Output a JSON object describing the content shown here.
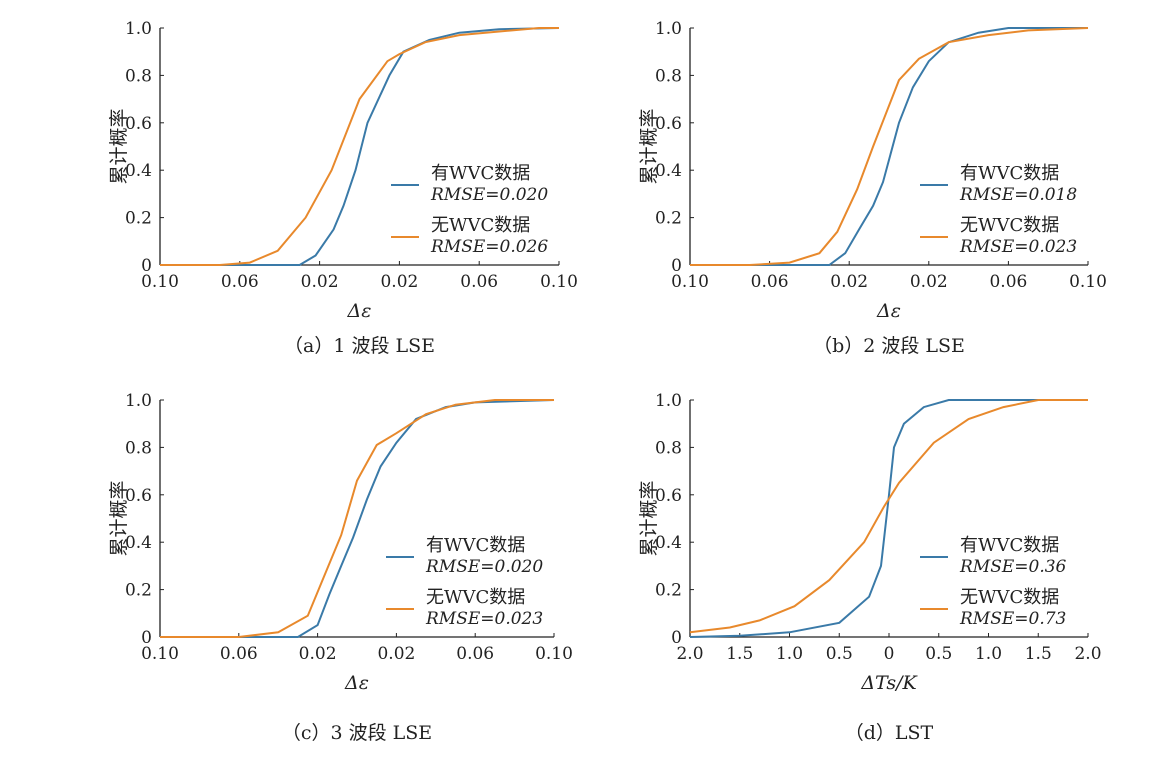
{
  "colors": {
    "with": "#3a7aa8",
    "without": "#e8892c"
  },
  "chart_data": [
    {
      "type": "line",
      "caption": "（a）1 波段 LSE",
      "xlabel": "Δε",
      "ylabel": "累计概率",
      "xlim": [
        -0.1,
        0.1
      ],
      "ylim": [
        0,
        1
      ],
      "xticks": [
        -0.1,
        -0.06,
        -0.02,
        0.02,
        0.06,
        0.1
      ],
      "xtick_labels": [
        "0.10",
        "0.06",
        "0.02",
        "0.02",
        "0.06",
        "0.10"
      ],
      "yticks": [
        0,
        0.2,
        0.4,
        0.6,
        0.8,
        1.0
      ],
      "ytick_labels": [
        "0",
        "0.2",
        "0.4",
        "0.6",
        "0.8",
        "1.0"
      ],
      "legend": "bottom-right",
      "series": [
        {
          "name": "有WVC数据",
          "rmse": "RMSE=0.020",
          "x": [
            -0.1,
            -0.03,
            -0.022,
            -0.013,
            -0.008,
            -0.002,
            0.004,
            0.015,
            0.022,
            0.035,
            0.05,
            0.07,
            0.1
          ],
          "y": [
            0,
            0,
            0.04,
            0.15,
            0.25,
            0.4,
            0.6,
            0.8,
            0.9,
            0.95,
            0.98,
            0.995,
            1
          ]
        },
        {
          "name": "无WVC数据",
          "rmse": "RMSE=0.026",
          "x": [
            -0.1,
            -0.07,
            -0.055,
            -0.041,
            -0.027,
            -0.014,
            0,
            0.014,
            0.02,
            0.033,
            0.05,
            0.09,
            0.1
          ],
          "y": [
            0,
            0,
            0.01,
            0.06,
            0.2,
            0.4,
            0.7,
            0.86,
            0.89,
            0.94,
            0.97,
            1,
            1
          ]
        }
      ]
    },
    {
      "type": "line",
      "caption": "（b）2 波段 LSE",
      "xlabel": "Δε",
      "ylabel": "累计概率",
      "xlim": [
        -0.1,
        0.1
      ],
      "ylim": [
        0,
        1
      ],
      "xticks": [
        -0.1,
        -0.06,
        -0.02,
        0.02,
        0.06,
        0.1
      ],
      "xtick_labels": [
        "0.10",
        "0.06",
        "0.02",
        "0.02",
        "0.06",
        "0.10"
      ],
      "yticks": [
        0,
        0.2,
        0.4,
        0.6,
        0.8,
        1.0
      ],
      "ytick_labels": [
        "0",
        "0.2",
        "0.4",
        "0.6",
        "0.8",
        "1.0"
      ],
      "legend": "bottom-right",
      "series": [
        {
          "name": "有WVC数据",
          "rmse": "RMSE=0.018",
          "x": [
            -0.1,
            -0.03,
            -0.022,
            -0.015,
            -0.008,
            -0.003,
            0.005,
            0.012,
            0.02,
            0.03,
            0.045,
            0.06,
            0.1
          ],
          "y": [
            0,
            0,
            0.05,
            0.15,
            0.25,
            0.35,
            0.6,
            0.75,
            0.86,
            0.94,
            0.98,
            1,
            1
          ]
        },
        {
          "name": "无WVC数据",
          "rmse": "RMSE=0.023",
          "x": [
            -0.1,
            -0.07,
            -0.05,
            -0.035,
            -0.026,
            -0.016,
            -0.008,
            0.005,
            0.015,
            0.03,
            0.05,
            0.07,
            0.1
          ],
          "y": [
            0,
            0,
            0.01,
            0.05,
            0.14,
            0.32,
            0.5,
            0.78,
            0.87,
            0.94,
            0.97,
            0.99,
            1
          ]
        }
      ]
    },
    {
      "type": "line",
      "caption": "（c）3 波段 LSE",
      "xlabel": "Δε",
      "ylabel": "累计概率",
      "xlim": [
        -0.1,
        0.1
      ],
      "ylim": [
        0,
        1
      ],
      "xticks": [
        -0.1,
        -0.06,
        -0.02,
        0.02,
        0.06,
        0.1
      ],
      "xtick_labels": [
        "0.10",
        "0.06",
        "0.02",
        "0.02",
        "0.06",
        "0.10"
      ],
      "yticks": [
        0,
        0.2,
        0.4,
        0.6,
        0.8,
        1.0
      ],
      "ytick_labels": [
        "0",
        "0.2",
        "0.4",
        "0.6",
        "0.8",
        "1.0"
      ],
      "legend": "bottom-right",
      "series": [
        {
          "name": "有WVC数据",
          "rmse": "RMSE=0.020",
          "x": [
            -0.1,
            -0.03,
            -0.02,
            -0.014,
            -0.008,
            -0.002,
            0.005,
            0.012,
            0.02,
            0.03,
            0.045,
            0.06,
            0.1
          ],
          "y": [
            0,
            0,
            0.05,
            0.18,
            0.3,
            0.42,
            0.58,
            0.72,
            0.82,
            0.92,
            0.97,
            0.99,
            1
          ]
        },
        {
          "name": "无WVC数据",
          "rmse": "RMSE=0.023",
          "x": [
            -0.1,
            -0.06,
            -0.04,
            -0.025,
            -0.017,
            -0.008,
            0,
            0.01,
            0.02,
            0.035,
            0.05,
            0.07,
            0.1
          ],
          "y": [
            0,
            0,
            0.02,
            0.09,
            0.25,
            0.43,
            0.66,
            0.81,
            0.86,
            0.94,
            0.98,
            1,
            1
          ]
        }
      ]
    },
    {
      "type": "line",
      "caption": "（d）LST",
      "xlabel": "ΔTs/K",
      "ylabel": "累计概率",
      "xlim": [
        -2,
        2
      ],
      "ylim": [
        0,
        1
      ],
      "xticks": [
        -2,
        -1.5,
        -1,
        -0.5,
        0,
        0.5,
        1,
        1.5,
        2
      ],
      "xtick_labels": [
        "2.0",
        "1.5",
        "1.0",
        "0.5",
        "0",
        "0.5",
        "1.0",
        "1.5",
        "2.0"
      ],
      "yticks": [
        0,
        0.2,
        0.4,
        0.6,
        0.8,
        1.0
      ],
      "ytick_labels": [
        "0",
        "0.2",
        "0.4",
        "0.6",
        "0.8",
        "1.0"
      ],
      "legend": "bottom-right",
      "series": [
        {
          "name": "有WVC数据",
          "rmse": "RMSE=0.36",
          "x": [
            -2,
            -1.5,
            -1,
            -0.5,
            -0.2,
            -0.08,
            0,
            0.05,
            0.15,
            0.35,
            0.6,
            2
          ],
          "y": [
            0,
            0.005,
            0.02,
            0.06,
            0.17,
            0.3,
            0.6,
            0.8,
            0.9,
            0.97,
            1,
            1
          ]
        },
        {
          "name": "无WVC数据",
          "rmse": "RMSE=0.73",
          "x": [
            -2,
            -1.6,
            -1.3,
            -0.95,
            -0.6,
            -0.25,
            -0.05,
            0.1,
            0.45,
            0.8,
            1.15,
            1.5,
            2
          ],
          "y": [
            0.02,
            0.04,
            0.07,
            0.13,
            0.24,
            0.4,
            0.55,
            0.65,
            0.82,
            0.92,
            0.97,
            1,
            1
          ]
        }
      ]
    }
  ]
}
